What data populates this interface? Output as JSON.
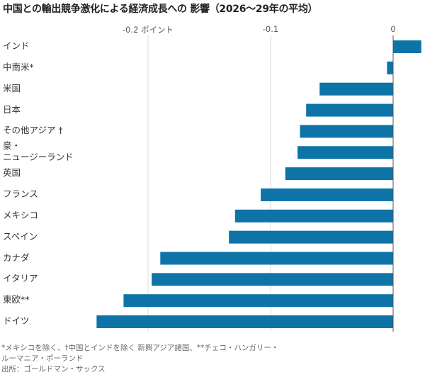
{
  "chart_data": {
    "type": "bar",
    "orientation": "horizontal",
    "title": "中国との輸出競争激化による経済成長への 影響（2026〜29年の平均）",
    "categories": [
      "インド",
      "中南米*",
      "米国",
      "日本",
      "その他アジア †",
      "豪・\nニュージーランド",
      "英国",
      "フランス",
      "メキシコ",
      "スペイン",
      "カナダ",
      "イタリア",
      "東欧**",
      "ドイツ"
    ],
    "values": [
      0.023,
      -0.005,
      -0.06,
      -0.071,
      -0.076,
      -0.078,
      -0.088,
      -0.108,
      -0.129,
      -0.134,
      -0.19,
      -0.197,
      -0.22,
      -0.242
    ],
    "xlim": [
      -0.255,
      0.025
    ],
    "ticks": [
      {
        "value": -0.2,
        "label": "-0.2 ポイント"
      },
      {
        "value": -0.1,
        "label": "-0.1"
      },
      {
        "value": 0,
        "label": "0"
      }
    ],
    "grid": true,
    "bar_color": "#0e74a8"
  },
  "notes": [
    "*メキシコを除く、†中国とインドを除く 新興アジア諸国、**チェコ・ハンガリー・",
    "ルーマニア・ポーランド",
    "出所：ゴールドマン・サックス"
  ]
}
